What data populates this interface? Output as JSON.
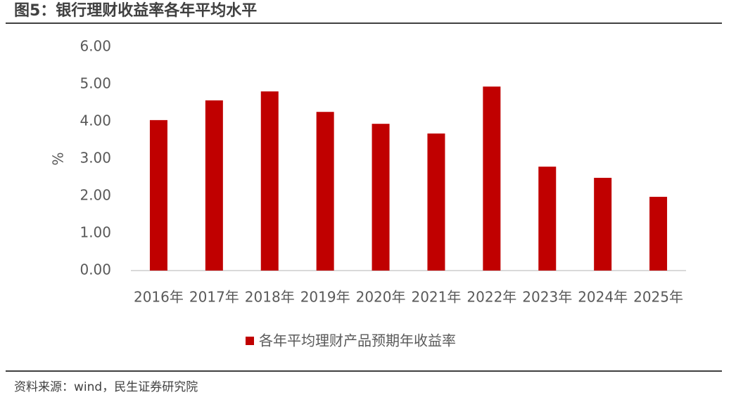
{
  "chart_data": {
    "type": "bar",
    "title": "图5：银行理财收益率各年平均水平",
    "source": "资料来源：wind，民生证券研究院",
    "y_label": "%",
    "categories": [
      "2016年",
      "2017年",
      "2018年",
      "2019年",
      "2020年",
      "2021年",
      "2022年",
      "2023年",
      "2024年",
      "2025年"
    ],
    "series": [
      {
        "name": "各年平均理财产品预期年收益率",
        "color": "#c00000",
        "values": [
          4.04,
          4.57,
          4.81,
          4.26,
          3.94,
          3.68,
          4.94,
          2.79,
          2.49,
          1.98
        ]
      }
    ],
    "ylim": [
      0,
      6
    ],
    "yticks": [
      {
        "value": 0,
        "label": "0.00"
      },
      {
        "value": 1,
        "label": "1.00"
      },
      {
        "value": 2,
        "label": "2.00"
      },
      {
        "value": 3,
        "label": "3.00"
      },
      {
        "value": 4,
        "label": "4.00"
      },
      {
        "value": 5,
        "label": "5.00"
      },
      {
        "value": 6,
        "label": "6.00"
      }
    ],
    "grid": false,
    "legend": "bottom"
  }
}
